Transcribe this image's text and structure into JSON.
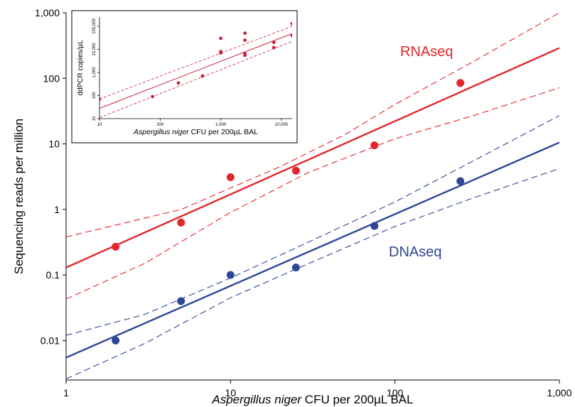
{
  "chart_data": [
    {
      "type": "scatter",
      "xlabel_italic": "Aspergillus niger",
      "xlabel_rest": " CFU per 200µL BAL",
      "ylabel": "Sequencing reads per million",
      "xscale": "log",
      "yscale": "log",
      "xlim": [
        1,
        1000
      ],
      "ylim": [
        0.0025,
        1000
      ],
      "x_ticks": [
        1,
        10,
        100,
        1000
      ],
      "x_tick_labels": [
        "1",
        "10",
        "100",
        "1,000"
      ],
      "y_ticks": [
        0.01,
        0.1,
        1,
        10,
        100,
        1000
      ],
      "y_tick_labels": [
        "0.01",
        "0.1",
        "1",
        "10",
        "100",
        "1,000"
      ],
      "series": [
        {
          "name": "RNAseq",
          "color": "#e3262b",
          "points": [
            [
              2,
              0.27
            ],
            [
              5,
              0.63
            ],
            [
              10,
              3.1
            ],
            [
              25,
              3.9
            ],
            [
              75,
              9.5
            ],
            [
              250,
              85
            ]
          ],
          "fit_line": [
            [
              1,
              0.13
            ],
            [
              1000,
              290
            ]
          ],
          "ci_upper": [
            [
              1,
              0.38
            ],
            [
              5,
              1.0
            ],
            [
              20,
              4.5
            ],
            [
              50,
              14
            ],
            [
              100,
              40
            ],
            [
              300,
              180
            ],
            [
              1000,
              1000
            ]
          ],
          "ci_lower": [
            [
              1,
              0.043
            ],
            [
              3,
              0.15
            ],
            [
              10,
              0.9
            ],
            [
              30,
              3.7
            ],
            [
              100,
              12
            ],
            [
              300,
              27
            ],
            [
              1000,
              72
            ]
          ]
        },
        {
          "name": "DNAseq",
          "color": "#2e4696",
          "points": [
            [
              2,
              0.01
            ],
            [
              5,
              0.04
            ],
            [
              10,
              0.1
            ],
            [
              25,
              0.13
            ],
            [
              75,
              0.56
            ],
            [
              250,
              2.7
            ]
          ],
          "fit_line": [
            [
              1,
              0.0055
            ],
            [
              1000,
              10.5
            ]
          ],
          "ci_upper": [
            [
              1,
              0.012
            ],
            [
              3,
              0.025
            ],
            [
              10,
              0.09
            ],
            [
              30,
              0.32
            ],
            [
              100,
              1.3
            ],
            [
              300,
              5.5
            ],
            [
              1000,
              27
            ]
          ],
          "ci_lower": [
            [
              1,
              0.0026
            ],
            [
              3,
              0.009
            ],
            [
              10,
              0.045
            ],
            [
              30,
              0.15
            ],
            [
              100,
              0.55
            ],
            [
              300,
              1.5
            ],
            [
              1000,
              4.2
            ]
          ]
        }
      ]
    },
    {
      "type": "scatter",
      "inset": true,
      "xlabel_italic": "Aspergillus niger",
      "xlabel_rest": " CFU per 200µL BAL",
      "ylabel": "ddPCR copies/µL",
      "xscale": "log",
      "yscale": "log",
      "xlim": [
        10,
        15000
      ],
      "ylim": [
        10,
        250000
      ],
      "x_ticks": [
        10,
        100,
        1000,
        10000
      ],
      "x_tick_labels": [
        "10",
        "100",
        "1,000",
        "10,000"
      ],
      "y_ticks": [
        10,
        100,
        1000,
        10000,
        100000
      ],
      "y_tick_labels": [
        "10",
        "100",
        "1,000",
        "10,000",
        "100,000"
      ],
      "color": "#c8203a",
      "points": [
        [
          10,
          70
        ],
        [
          75,
          90
        ],
        [
          200,
          350
        ],
        [
          500,
          700
        ],
        [
          1000,
          30000
        ],
        [
          1000,
          8000
        ],
        [
          1000,
          7000
        ],
        [
          2500,
          50000
        ],
        [
          2500,
          25000
        ],
        [
          2500,
          6500
        ],
        [
          2500,
          5500
        ],
        [
          7500,
          20000
        ],
        [
          7500,
          12000
        ],
        [
          15000,
          130000
        ],
        [
          15000,
          40000
        ]
      ],
      "fit_line": [
        [
          10,
          28
        ],
        [
          15000,
          48000
        ]
      ],
      "ci_upper": [
        [
          10,
          70
        ],
        [
          15000,
          100000
        ]
      ],
      "ci_lower": [
        [
          10,
          11
        ],
        [
          15000,
          22000
        ]
      ]
    }
  ],
  "annotations": {
    "rna_label": "RNAseq",
    "dna_label": "DNAseq"
  }
}
